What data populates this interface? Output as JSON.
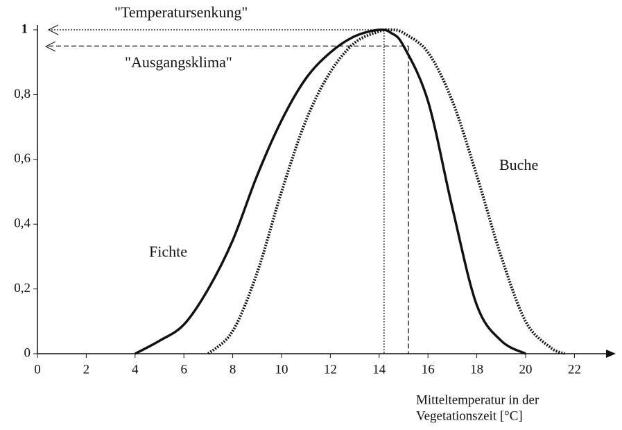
{
  "chart_data": {
    "type": "line",
    "xlabel": [
      "Mitteltemperatur in der",
      "Vegetationszeit [°C]"
    ],
    "xlim": [
      0,
      23.6
    ],
    "ylim": [
      0,
      1
    ],
    "xticks": [
      0,
      2,
      4,
      6,
      8,
      10,
      12,
      14,
      16,
      18,
      20,
      22
    ],
    "yticks": [
      0,
      {
        "value": 0.2,
        "label": "0,2"
      },
      {
        "value": 0.4,
        "label": "0,4"
      },
      {
        "value": 0.6,
        "label": "0,6"
      },
      {
        "value": 0.8,
        "label": "0,8"
      },
      1
    ],
    "series": [
      {
        "name": "Fichte",
        "color": "#111111",
        "style": "solid",
        "x": [
          4,
          5,
          6,
          7,
          8,
          9,
          10,
          11,
          12,
          13,
          14,
          14.5,
          15,
          16,
          17,
          18,
          19,
          20
        ],
        "values": [
          0,
          0.04,
          0.09,
          0.2,
          0.35,
          0.55,
          0.72,
          0.85,
          0.93,
          0.98,
          1.0,
          0.99,
          0.95,
          0.78,
          0.45,
          0.15,
          0.04,
          0
        ]
      },
      {
        "name": "Buche",
        "color": "#111111",
        "style": "dotted",
        "x": [
          7,
          8,
          9,
          10,
          11,
          12,
          13,
          14,
          14.5,
          15,
          16,
          17,
          18,
          19,
          20,
          21,
          21.6
        ],
        "values": [
          0,
          0.07,
          0.25,
          0.5,
          0.72,
          0.87,
          0.96,
          0.995,
          1.0,
          0.99,
          0.93,
          0.78,
          0.55,
          0.3,
          0.1,
          0.02,
          0
        ]
      }
    ],
    "annotations": [
      {
        "text": "\"Temperatursenkung\"",
        "x": 14.2,
        "y": 1,
        "style": "dotted"
      },
      {
        "text": "\"Ausgangsklima\"",
        "x": 15.2,
        "y": 0.95,
        "style": "dashed"
      }
    ]
  }
}
